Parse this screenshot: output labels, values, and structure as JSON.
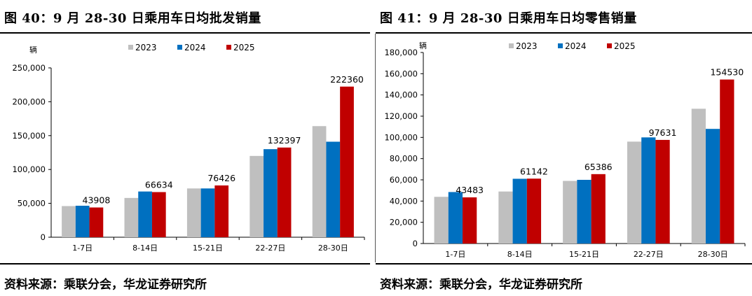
{
  "charts": [
    {
      "figure_title": "图 40：9 月 28-30 日乘用车日均批发销量",
      "source": "资料来源：乘联分会，华龙证券研究所",
      "chart_data": {
        "type": "bar",
        "ylabel": "辆",
        "categories": [
          "1-7日",
          "8-14日",
          "15-21日",
          "22-27日",
          "28-30日"
        ],
        "series": [
          {
            "name": "2023",
            "color": "#bfbfbf",
            "values": [
              46000,
              58000,
              72000,
              120000,
              164000
            ]
          },
          {
            "name": "2024",
            "color": "#0070c0",
            "values": [
              46500,
              67500,
              72000,
              130000,
              141000
            ]
          },
          {
            "name": "2025",
            "color": "#c00000",
            "values": [
              43908,
              66634,
              76426,
              132397,
              222360
            ]
          }
        ],
        "data_labels": {
          "series": "2025",
          "values": [
            "43908",
            "66634",
            "76426",
            "132397",
            "222360"
          ]
        },
        "ylim": [
          0,
          250000
        ],
        "yticks": [
          "0",
          "50,000",
          "100,000",
          "150,000",
          "200,000",
          "250,000"
        ],
        "ytick_values": [
          0,
          50000,
          100000,
          150000,
          200000,
          250000
        ],
        "legend_position": "top"
      }
    },
    {
      "figure_title": "图 41：9 月 28-30 日乘用车日均零售销量",
      "source": "资料来源：乘联分会，华龙证券研究所",
      "chart_data": {
        "type": "bar",
        "ylabel": "辆",
        "categories": [
          "1-7日",
          "8-14日",
          "15-21日",
          "22-27日",
          "28-30日"
        ],
        "series": [
          {
            "name": "2023",
            "color": "#bfbfbf",
            "values": [
              44000,
              49000,
              59000,
              96000,
              127000
            ]
          },
          {
            "name": "2024",
            "color": "#0070c0",
            "values": [
              48500,
              61000,
              60000,
              100000,
              108000
            ]
          },
          {
            "name": "2025",
            "color": "#c00000",
            "values": [
              43483,
              61142,
              65386,
              97631,
              154530
            ]
          }
        ],
        "data_labels": {
          "series": "2025",
          "values": [
            "43483",
            "61142",
            "65386",
            "97631",
            "154530"
          ]
        },
        "ylim": [
          0,
          180000
        ],
        "yticks": [
          "0",
          "20,000",
          "40,000",
          "60,000",
          "80,000",
          "100,000",
          "120,000",
          "140,000",
          "160,000",
          "180,000"
        ],
        "ytick_values": [
          0,
          20000,
          40000,
          60000,
          80000,
          100000,
          120000,
          140000,
          160000,
          180000
        ],
        "legend_position": "top"
      }
    }
  ]
}
